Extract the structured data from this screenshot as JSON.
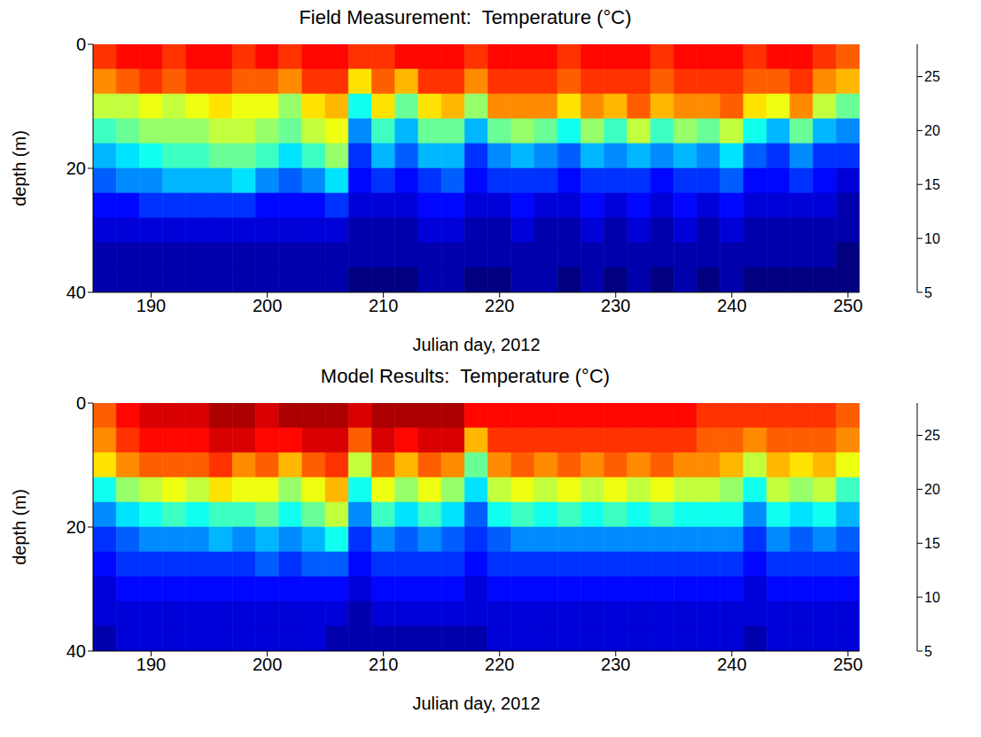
{
  "chart_data": [
    {
      "type": "heatmap",
      "title": "Field Measurement:  Temperature (°C)",
      "x_label": "Julian day, 2012",
      "y_label": "depth (m)",
      "x": [
        186,
        188,
        190,
        192,
        194,
        196,
        198,
        200,
        202,
        204,
        206,
        208,
        210,
        212,
        214,
        216,
        218,
        220,
        222,
        224,
        226,
        228,
        230,
        232,
        234,
        236,
        238,
        240,
        242,
        244,
        246,
        248,
        250
      ],
      "y": [
        2,
        6,
        10,
        14,
        18,
        22,
        26,
        30,
        34,
        38
      ],
      "values": [
        [
          24,
          22,
          18,
          15,
          12,
          10,
          8,
          7,
          6,
          6
        ],
        [
          25,
          23,
          18,
          16,
          13,
          11,
          8,
          7,
          6,
          6
        ],
        [
          25,
          24,
          19,
          17,
          14,
          11,
          9,
          7,
          6,
          6
        ],
        [
          24,
          23,
          18,
          17,
          15,
          12,
          9,
          7,
          6,
          6
        ],
        [
          25,
          24,
          19,
          17,
          15,
          12,
          9,
          7,
          6,
          6
        ],
        [
          25,
          24,
          20,
          18,
          16,
          12,
          9,
          7,
          6,
          6
        ],
        [
          24,
          23,
          19,
          18,
          16,
          13,
          9,
          7,
          6,
          6
        ],
        [
          25,
          23,
          19,
          17,
          15,
          11,
          8,
          7,
          6,
          6
        ],
        [
          24,
          22,
          17,
          16,
          13,
          10,
          8,
          7,
          6,
          6
        ],
        [
          25,
          24,
          20,
          18,
          15,
          11,
          8,
          7,
          6,
          6
        ],
        [
          25,
          24,
          21,
          19,
          17,
          13,
          9,
          7,
          6,
          6
        ],
        [
          24,
          20,
          14,
          11,
          9,
          8,
          7,
          6,
          6,
          5
        ],
        [
          24,
          23,
          20,
          15,
          12,
          9,
          7,
          6,
          6,
          5
        ],
        [
          25,
          21,
          16,
          12,
          10,
          8,
          7,
          6,
          6,
          5
        ],
        [
          25,
          24,
          20,
          16,
          12,
          9,
          8,
          7,
          6,
          6
        ],
        [
          25,
          24,
          21,
          16,
          12,
          10,
          8,
          7,
          6,
          6
        ],
        [
          24,
          22,
          17,
          12,
          9,
          8,
          7,
          6,
          6,
          5
        ],
        [
          25,
          24,
          22,
          16,
          11,
          9,
          7,
          6,
          6,
          5
        ],
        [
          25,
          24,
          22,
          17,
          12,
          9,
          8,
          7,
          6,
          6
        ],
        [
          25,
          24,
          22,
          16,
          11,
          9,
          7,
          6,
          6,
          6
        ],
        [
          24,
          23,
          20,
          14,
          10,
          8,
          7,
          6,
          6,
          5
        ],
        [
          25,
          24,
          22,
          17,
          12,
          9,
          8,
          7,
          6,
          6
        ],
        [
          25,
          24,
          21,
          15,
          11,
          9,
          7,
          6,
          6,
          5
        ],
        [
          25,
          24,
          23,
          18,
          12,
          9,
          8,
          7,
          6,
          6
        ],
        [
          24,
          23,
          21,
          15,
          11,
          8,
          7,
          6,
          6,
          5
        ],
        [
          25,
          24,
          22,
          17,
          12,
          9,
          8,
          7,
          6,
          6
        ],
        [
          25,
          24,
          22,
          16,
          11,
          9,
          7,
          6,
          6,
          5
        ],
        [
          25,
          24,
          23,
          18,
          13,
          10,
          8,
          7,
          6,
          6
        ],
        [
          24,
          23,
          20,
          14,
          10,
          8,
          7,
          6,
          6,
          5
        ],
        [
          25,
          23,
          19,
          12,
          9,
          8,
          7,
          6,
          6,
          5
        ],
        [
          25,
          24,
          22,
          16,
          11,
          9,
          7,
          6,
          6,
          5
        ],
        [
          24,
          22,
          18,
          12,
          9,
          8,
          7,
          6,
          6,
          5
        ],
        [
          23,
          21,
          16,
          11,
          9,
          7,
          6,
          6,
          5,
          5
        ]
      ],
      "xlim": [
        185,
        251
      ],
      "ylim": [
        40,
        0
      ],
      "xticks": [
        190,
        200,
        210,
        220,
        230,
        240,
        250
      ],
      "yticks": [
        0,
        20,
        40
      ],
      "colorbar": {
        "range": [
          5,
          28
        ],
        "ticks": [
          5,
          10,
          15,
          20,
          25
        ]
      }
    },
    {
      "type": "heatmap",
      "title": "Model Results:  Temperature (°C)",
      "x_label": "Julian day, 2012",
      "y_label": "depth (m)",
      "x": [
        186,
        188,
        190,
        192,
        194,
        196,
        198,
        200,
        202,
        204,
        206,
        208,
        210,
        212,
        214,
        216,
        218,
        220,
        222,
        224,
        226,
        228,
        230,
        232,
        234,
        236,
        238,
        240,
        242,
        244,
        246,
        248,
        250
      ],
      "y": [
        2,
        6,
        10,
        14,
        18,
        22,
        26,
        30,
        34,
        38
      ],
      "values": [
        [
          23,
          22,
          20,
          14,
          11,
          9,
          8,
          7,
          7,
          6
        ],
        [
          25,
          24,
          22,
          17,
          13,
          10,
          9,
          8,
          7,
          7
        ],
        [
          26,
          25,
          23,
          18,
          14,
          11,
          9,
          8,
          7,
          7
        ],
        [
          26,
          25,
          23,
          19,
          15,
          11,
          9,
          8,
          7,
          7
        ],
        [
          26,
          25,
          23,
          18,
          14,
          11,
          9,
          8,
          7,
          7
        ],
        [
          27,
          26,
          24,
          20,
          15,
          12,
          9,
          8,
          7,
          7
        ],
        [
          27,
          26,
          22,
          19,
          15,
          11,
          9,
          8,
          7,
          7
        ],
        [
          26,
          25,
          23,
          19,
          16,
          12,
          10,
          8,
          7,
          7
        ],
        [
          27,
          25,
          21,
          17,
          14,
          11,
          9,
          8,
          7,
          7
        ],
        [
          27,
          26,
          23,
          19,
          16,
          12,
          10,
          8,
          7,
          7
        ],
        [
          27,
          26,
          24,
          21,
          18,
          14,
          10,
          8,
          7,
          6
        ],
        [
          26,
          23,
          18,
          14,
          11,
          9,
          8,
          7,
          6,
          6
        ],
        [
          27,
          26,
          23,
          19,
          15,
          11,
          9,
          8,
          7,
          6
        ],
        [
          27,
          25,
          21,
          17,
          13,
          10,
          9,
          8,
          7,
          6
        ],
        [
          27,
          26,
          23,
          19,
          15,
          11,
          9,
          8,
          7,
          6
        ],
        [
          27,
          26,
          22,
          17,
          13,
          10,
          9,
          8,
          7,
          6
        ],
        [
          25,
          21,
          16,
          13,
          10,
          9,
          8,
          7,
          7,
          6
        ],
        [
          25,
          24,
          22,
          18,
          14,
          10,
          9,
          8,
          7,
          7
        ],
        [
          25,
          24,
          23,
          19,
          15,
          11,
          9,
          8,
          7,
          7
        ],
        [
          25,
          24,
          22,
          18,
          14,
          11,
          9,
          8,
          7,
          7
        ],
        [
          25,
          24,
          23,
          19,
          15,
          11,
          9,
          8,
          7,
          7
        ],
        [
          25,
          24,
          22,
          18,
          14,
          11,
          9,
          8,
          7,
          7
        ],
        [
          25,
          24,
          23,
          19,
          15,
          11,
          9,
          8,
          7,
          7
        ],
        [
          25,
          24,
          22,
          18,
          14,
          11,
          9,
          8,
          7,
          7
        ],
        [
          25,
          24,
          23,
          19,
          15,
          11,
          9,
          8,
          7,
          7
        ],
        [
          25,
          24,
          22,
          18,
          14,
          11,
          9,
          8,
          7,
          7
        ],
        [
          24,
          23,
          22,
          18,
          14,
          11,
          9,
          8,
          7,
          7
        ],
        [
          24,
          23,
          21,
          17,
          14,
          11,
          9,
          8,
          7,
          7
        ],
        [
          24,
          22,
          18,
          14,
          11,
          9,
          8,
          7,
          7,
          6
        ],
        [
          24,
          23,
          21,
          18,
          14,
          11,
          9,
          8,
          7,
          7
        ],
        [
          24,
          23,
          20,
          17,
          13,
          10,
          9,
          8,
          7,
          7
        ],
        [
          24,
          23,
          21,
          18,
          14,
          11,
          9,
          8,
          7,
          7
        ],
        [
          23,
          22,
          19,
          15,
          12,
          10,
          9,
          8,
          7,
          7
        ]
      ],
      "xlim": [
        185,
        251
      ],
      "ylim": [
        40,
        0
      ],
      "xticks": [
        190,
        200,
        210,
        220,
        230,
        240,
        250
      ],
      "yticks": [
        0,
        20,
        40
      ],
      "colorbar": {
        "range": [
          5,
          28
        ],
        "ticks": [
          5,
          10,
          15,
          20,
          25
        ]
      }
    }
  ]
}
